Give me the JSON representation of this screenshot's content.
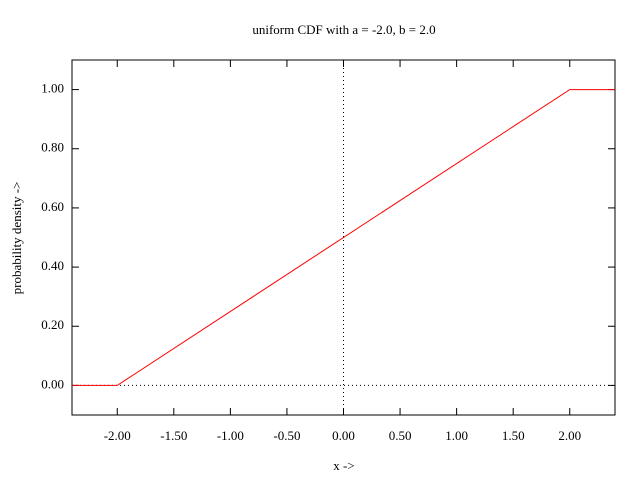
{
  "chart_data": {
    "type": "line",
    "title": "uniform CDF with a = -2.0, b = 2.0",
    "x_label": "x ->",
    "y_label": "probability density ->",
    "x": [
      -2.4,
      -2,
      2,
      2.4
    ],
    "values": [
      0,
      0,
      1,
      1
    ],
    "color": "#ff0000",
    "xlim": [
      -2.4,
      2.4
    ],
    "ylim": [
      -0.1,
      1.1
    ],
    "xticks": [
      {
        "value": -2,
        "label": "-2.00"
      },
      {
        "value": -1.5,
        "label": "-1.50"
      },
      {
        "value": -1,
        "label": "-1.00"
      },
      {
        "value": -0.5,
        "label": "-0.50"
      },
      {
        "value": 0,
        "label": "0.00"
      },
      {
        "value": 0.5,
        "label": "0.50"
      },
      {
        "value": 1,
        "label": "1.00"
      },
      {
        "value": 1.5,
        "label": "1.50"
      },
      {
        "value": 2,
        "label": "2.00"
      }
    ],
    "yticks": [
      {
        "value": 0,
        "label": "0.00"
      },
      {
        "value": 0.2,
        "label": "0.20"
      },
      {
        "value": 0.4,
        "label": "0.40"
      },
      {
        "value": 0.6,
        "label": "0.60"
      },
      {
        "value": 0.8,
        "label": "0.80"
      },
      {
        "value": 1,
        "label": "1.00"
      }
    ],
    "zero_axes": true
  }
}
